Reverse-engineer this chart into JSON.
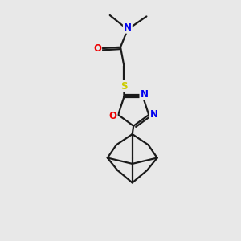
{
  "background_color": "#e8e8e8",
  "bond_color": "#1a1a1a",
  "atom_colors": {
    "N": "#0000ee",
    "O": "#ee0000",
    "S": "#cccc00",
    "C": "#1a1a1a"
  },
  "lw": 1.6,
  "fs": 8.5
}
